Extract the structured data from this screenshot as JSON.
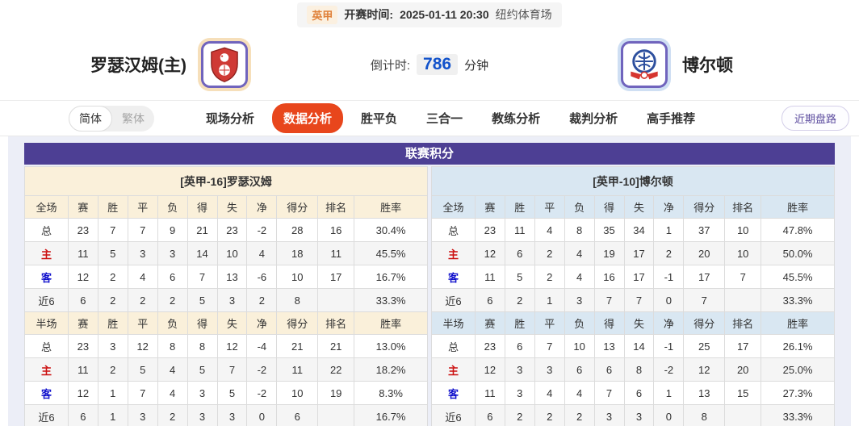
{
  "colors": {
    "accent_purple": "#4d3f94",
    "active_tab_orange": "#e8461c",
    "countdown_blue": "#1353cb",
    "home_row_red": "#cc1111",
    "away_row_blue": "#1111cc",
    "home_panel_cream": "#faf0da",
    "away_panel_blue": "#d9e7f2"
  },
  "top_bar": {
    "league_badge": "英甲",
    "kickoff_label": "开赛时间:",
    "kickoff_time": "2025-01-11 20:30",
    "venue": "纽约体育场"
  },
  "header": {
    "home_team": "罗瑟汉姆(主)",
    "away_team": "博尔顿",
    "countdown_label": "倒计时:",
    "countdown_value": "786",
    "countdown_unit": "分钟"
  },
  "nav": {
    "lang_simplified": "简体",
    "lang_traditional": "繁体",
    "tabs": [
      {
        "label": "现场分析",
        "active": false
      },
      {
        "label": "数据分析",
        "active": true
      },
      {
        "label": "胜平负",
        "active": false
      },
      {
        "label": "三合一",
        "active": false
      },
      {
        "label": "教练分析",
        "active": false
      },
      {
        "label": "裁判分析",
        "active": false
      },
      {
        "label": "高手推荐",
        "active": false
      }
    ],
    "recent_button": "近期盘路"
  },
  "table": {
    "title": "联赛积分",
    "full_section_label": "全场",
    "half_section_label": "半场",
    "columns": [
      "赛",
      "胜",
      "平",
      "负",
      "得",
      "失",
      "净",
      "得分",
      "排名",
      "胜率"
    ],
    "sides": {
      "home": {
        "header": "[英甲-16]罗瑟汉姆",
        "theme": "cream",
        "full_rows": [
          {
            "label": "总",
            "values": [
              "23",
              "7",
              "7",
              "9",
              "21",
              "23",
              "-2",
              "28",
              "16",
              "30.4%"
            ]
          },
          {
            "label": "主",
            "values": [
              "11",
              "5",
              "3",
              "3",
              "14",
              "10",
              "4",
              "18",
              "11",
              "45.5%"
            ]
          },
          {
            "label": "客",
            "values": [
              "12",
              "2",
              "4",
              "6",
              "7",
              "13",
              "-6",
              "10",
              "17",
              "16.7%"
            ]
          },
          {
            "label": "近6",
            "values": [
              "6",
              "2",
              "2",
              "2",
              "5",
              "3",
              "2",
              "8",
              "",
              "33.3%"
            ]
          }
        ],
        "half_rows": [
          {
            "label": "总",
            "values": [
              "23",
              "3",
              "12",
              "8",
              "8",
              "12",
              "-4",
              "21",
              "21",
              "13.0%"
            ]
          },
          {
            "label": "主",
            "values": [
              "11",
              "2",
              "5",
              "4",
              "5",
              "7",
              "-2",
              "11",
              "22",
              "18.2%"
            ]
          },
          {
            "label": "客",
            "values": [
              "12",
              "1",
              "7",
              "4",
              "3",
              "5",
              "-2",
              "10",
              "19",
              "8.3%"
            ]
          },
          {
            "label": "近6",
            "values": [
              "6",
              "1",
              "3",
              "2",
              "3",
              "3",
              "0",
              "6",
              "",
              "16.7%"
            ]
          }
        ]
      },
      "away": {
        "header": "[英甲-10]博尔顿",
        "theme": "blue",
        "full_rows": [
          {
            "label": "总",
            "values": [
              "23",
              "11",
              "4",
              "8",
              "35",
              "34",
              "1",
              "37",
              "10",
              "47.8%"
            ]
          },
          {
            "label": "主",
            "values": [
              "12",
              "6",
              "2",
              "4",
              "19",
              "17",
              "2",
              "20",
              "10",
              "50.0%"
            ]
          },
          {
            "label": "客",
            "values": [
              "11",
              "5",
              "2",
              "4",
              "16",
              "17",
              "-1",
              "17",
              "7",
              "45.5%"
            ]
          },
          {
            "label": "近6",
            "values": [
              "6",
              "2",
              "1",
              "3",
              "7",
              "7",
              "0",
              "7",
              "",
              "33.3%"
            ]
          }
        ],
        "half_rows": [
          {
            "label": "总",
            "values": [
              "23",
              "6",
              "7",
              "10",
              "13",
              "14",
              "-1",
              "25",
              "17",
              "26.1%"
            ]
          },
          {
            "label": "主",
            "values": [
              "12",
              "3",
              "3",
              "6",
              "6",
              "8",
              "-2",
              "12",
              "20",
              "25.0%"
            ]
          },
          {
            "label": "客",
            "values": [
              "11",
              "3",
              "4",
              "4",
              "7",
              "6",
              "1",
              "13",
              "15",
              "27.3%"
            ]
          },
          {
            "label": "近6",
            "values": [
              "6",
              "2",
              "2",
              "2",
              "3",
              "3",
              "0",
              "8",
              "",
              "33.3%"
            ]
          }
        ]
      }
    }
  }
}
